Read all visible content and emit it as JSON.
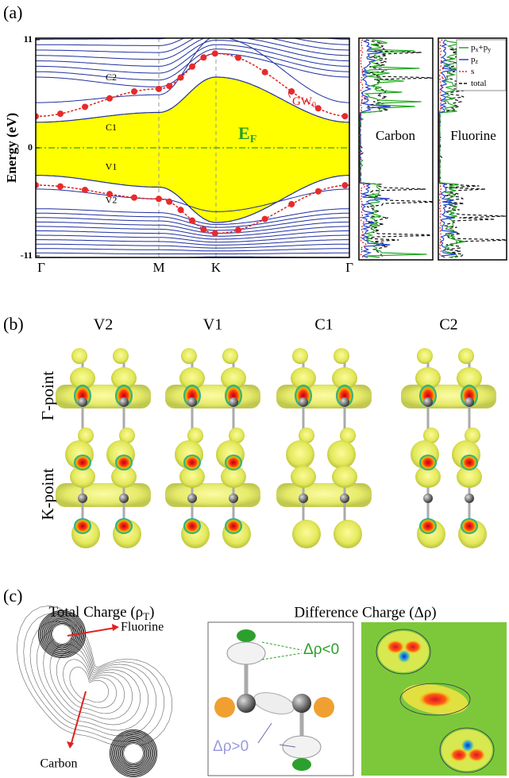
{
  "panel_a": {
    "label": "(a)",
    "y_axis_label": "Energy (eV)",
    "ylim": [
      -11,
      11
    ],
    "yticks": [
      11,
      0,
      -11
    ],
    "x_labels": [
      "Γ",
      "M",
      "K",
      "Γ"
    ],
    "band_labels": [
      "C2",
      "C1",
      "V1",
      "V2"
    ],
    "gw_label": {
      "main": "GW",
      "sub": "0"
    },
    "fermi_label": {
      "main": "E",
      "sub": "F"
    },
    "dos_panels": [
      "Carbon",
      "Fluorine"
    ],
    "dos_legend": [
      {
        "main": "p",
        "sub": "x",
        "main2": "+p",
        "sub2": "y",
        "color": "#22aa22"
      },
      {
        "main": "p",
        "sub": "z",
        "color": "#2244cc"
      },
      {
        "main": "s",
        "color": "#dd2222"
      },
      {
        "main": "total",
        "color": "#111111"
      }
    ]
  },
  "panel_b": {
    "label": "(b)",
    "columns": [
      "V2",
      "V1",
      "C1",
      "C2"
    ],
    "rows": [
      "Γ-point",
      "K-point"
    ]
  },
  "panel_c": {
    "label": "(c)",
    "total_title": {
      "main": "Total Charge (ρ",
      "sub": "T",
      "end": ")"
    },
    "difference_title": "Difference Charge (Δρ)",
    "fluorine": "Fluorine",
    "carbon": "Carbon",
    "negative": "Δρ<0",
    "positive": "Δρ>0"
  }
}
